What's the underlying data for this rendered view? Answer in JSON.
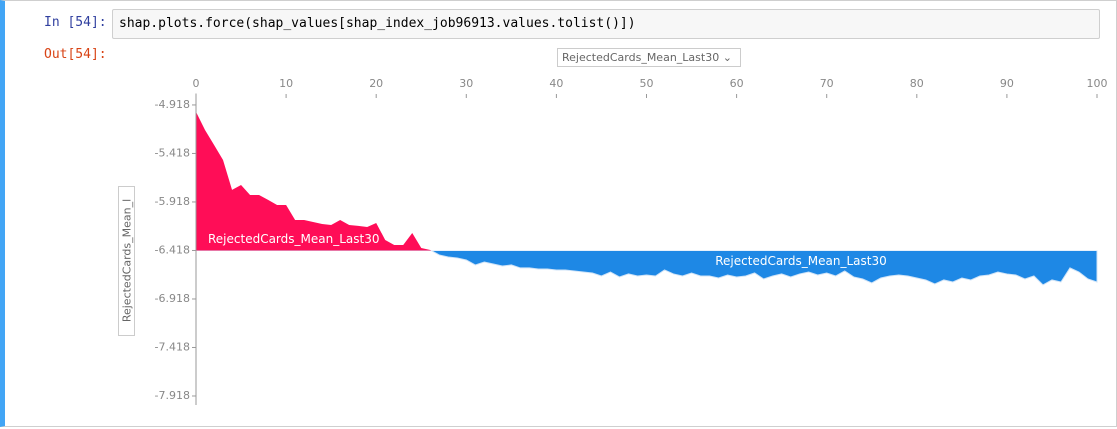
{
  "cell": {
    "in_prompt": "In [54]:",
    "code": "shap.plots.force(shap_values[shap_index_job96913.values.tolist()])",
    "out_prompt": "Out[54]:",
    "x_select": "RejectedCards_Mean_Last30",
    "y_select": "RejectedCards_Mean_l"
  },
  "chart_data": {
    "type": "force",
    "positive_label": "RejectedCards_Mean_Last30",
    "negative_label": "RejectedCards_Mean_Last30",
    "base_value": -6.418,
    "x": [
      0,
      1,
      2,
      3,
      4,
      5,
      6,
      7,
      8,
      9,
      10,
      11,
      12,
      13,
      14,
      15,
      16,
      17,
      18,
      19,
      20,
      21,
      22,
      23,
      24,
      25,
      26,
      27,
      28,
      29,
      30,
      31,
      32,
      33,
      34,
      35,
      36,
      37,
      38,
      39,
      40,
      41,
      42,
      43,
      44,
      45,
      46,
      47,
      48,
      49,
      50,
      51,
      52,
      53,
      54,
      55,
      56,
      57,
      58,
      59,
      60,
      61,
      62,
      63,
      64,
      65,
      66,
      67,
      68,
      69,
      70,
      71,
      72,
      73,
      74,
      75,
      76,
      77,
      78,
      79,
      80,
      81,
      82,
      83,
      84,
      85,
      86,
      87,
      88,
      89,
      90,
      91,
      92,
      93,
      94,
      95,
      96,
      97,
      98,
      99,
      100
    ],
    "values": [
      -4.99,
      -5.176,
      -5.33,
      -5.485,
      -5.794,
      -5.743,
      -5.846,
      -5.846,
      -5.897,
      -5.949,
      -5.949,
      -6.104,
      -6.104,
      -6.124,
      -6.145,
      -6.155,
      -6.104,
      -6.155,
      -6.165,
      -6.176,
      -6.135,
      -6.31,
      -6.362,
      -6.362,
      -6.238,
      -6.392,
      -6.413,
      -6.464,
      -6.485,
      -6.495,
      -6.516,
      -6.567,
      -6.537,
      -6.557,
      -6.578,
      -6.567,
      -6.598,
      -6.598,
      -6.609,
      -6.609,
      -6.619,
      -6.619,
      -6.629,
      -6.64,
      -6.65,
      -6.681,
      -6.64,
      -6.691,
      -6.66,
      -6.681,
      -6.671,
      -6.681,
      -6.619,
      -6.66,
      -6.681,
      -6.65,
      -6.681,
      -6.681,
      -6.702,
      -6.671,
      -6.691,
      -6.681,
      -6.65,
      -6.712,
      -6.681,
      -6.66,
      -6.691,
      -6.66,
      -6.64,
      -6.671,
      -6.65,
      -6.681,
      -6.629,
      -6.691,
      -6.712,
      -6.753,
      -6.702,
      -6.681,
      -6.671,
      -6.681,
      -6.702,
      -6.722,
      -6.763,
      -6.722,
      -6.743,
      -6.702,
      -6.722,
      -6.681,
      -6.671,
      -6.64,
      -6.66,
      -6.671,
      -6.712,
      -6.681,
      -6.773,
      -6.722,
      -6.743,
      -6.598,
      -6.64,
      -6.712,
      -6.743
    ],
    "positive_color": "#ff0d57",
    "negative_color": "#1e88e5",
    "xlim": [
      0,
      100
    ],
    "xticks": [
      0,
      10,
      20,
      30,
      40,
      50,
      60,
      70,
      80,
      90,
      100
    ],
    "ylim": [
      -7.98,
      -4.8
    ],
    "yticks": [
      -4.918,
      -5.418,
      -5.918,
      -6.418,
      -6.918,
      -7.418,
      -7.918
    ]
  }
}
